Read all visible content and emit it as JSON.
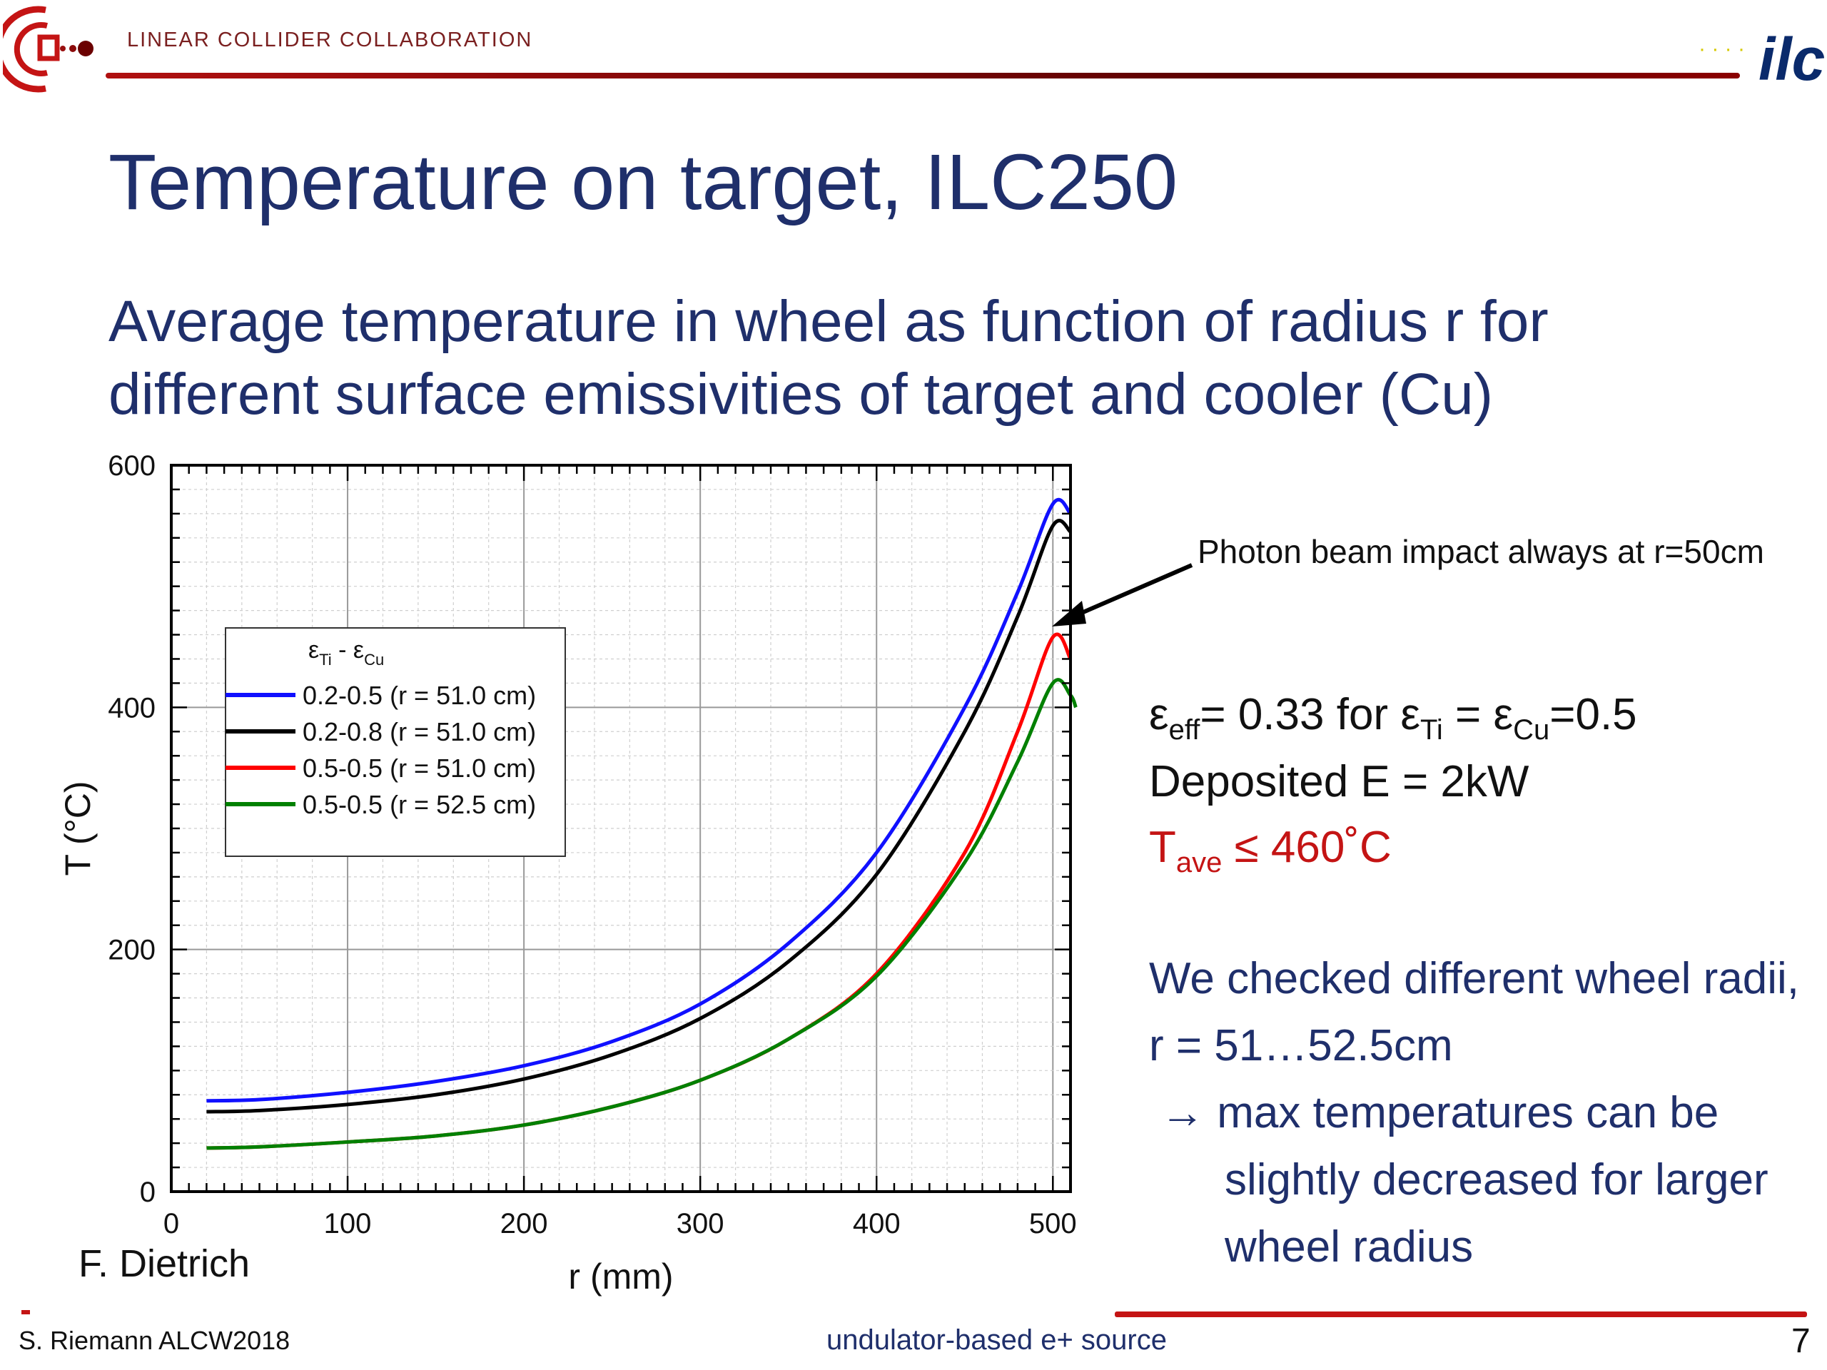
{
  "header": {
    "org": "LINEAR COLLIDER COLLABORATION",
    "ilc_logo": "ilc"
  },
  "slide": {
    "title": "Temperature on target, ILC250",
    "subtitle_line1": "Average temperature in wheel as function of radius r for",
    "subtitle_line2": "different surface emissivities of target and cooler (Cu)"
  },
  "chart_data": {
    "type": "line",
    "xlabel": "r (mm)",
    "ylabel": "T (°C)",
    "xlim": [
      0,
      510
    ],
    "ylim": [
      0,
      600
    ],
    "xticks": [
      "0",
      "100",
      "200",
      "300",
      "400",
      "500"
    ],
    "yticks": [
      "0",
      "200",
      "400",
      "600"
    ],
    "grid": true,
    "legend_title": "εTi - εCu",
    "legend_placement": "center-left",
    "series": [
      {
        "name": "0.2-0.5 (r = 51.0 cm)",
        "color": "#1010ff",
        "x": [
          20,
          50,
          100,
          150,
          200,
          250,
          300,
          350,
          400,
          450,
          480,
          500,
          510
        ],
        "y": [
          75,
          76,
          82,
          91,
          104,
          124,
          155,
          205,
          280,
          400,
          495,
          568,
          560
        ]
      },
      {
        "name": "0.2-0.8 (r = 51.0 cm)",
        "color": "#000000",
        "x": [
          20,
          50,
          100,
          150,
          200,
          250,
          300,
          350,
          400,
          450,
          480,
          500,
          510
        ],
        "y": [
          66,
          67,
          72,
          80,
          93,
          113,
          143,
          190,
          262,
          380,
          475,
          550,
          545
        ]
      },
      {
        "name": "0.5-0.5 (r = 51.0 cm)",
        "color": "#ff0000",
        "x": [
          20,
          50,
          100,
          150,
          200,
          250,
          300,
          350,
          400,
          450,
          480,
          500,
          510
        ],
        "y": [
          36,
          37,
          41,
          46,
          55,
          70,
          92,
          126,
          180,
          280,
          380,
          458,
          440
        ]
      },
      {
        "name": "0.5-0.5 (r = 52.5 cm)",
        "color": "#008000",
        "x": [
          20,
          50,
          100,
          150,
          200,
          250,
          300,
          350,
          400,
          450,
          480,
          500,
          510,
          513
        ],
        "y": [
          36,
          37,
          41,
          46,
          55,
          70,
          92,
          126,
          178,
          272,
          355,
          420,
          410,
          400
        ]
      }
    ],
    "annotation": "Photon beam impact always at r=50cm"
  },
  "chart_labels": {
    "legend_eps": "ε",
    "legend_ti": "Ti",
    "legend_dash": " - ",
    "legend_cu": "Cu"
  },
  "info": {
    "eps": "ε",
    "eff_sub": "eff",
    "eff_text": "= 0.33 for  ",
    "eps_ti": "ε",
    "ti_sub": "Ti",
    "eq_mid": " = ε",
    "cu_sub": "Cu",
    "eq_end": "=0.5",
    "deposited": "Deposited E = 2kW",
    "t": "T",
    "ave_sub": "ave",
    "tave_text": " ≤ 460˚C"
  },
  "notes": {
    "line1": "We checked different wheel radii,",
    "line2": "r = 51…52.5cm",
    "line3_arrow": "→",
    "line3": " max temperatures can be",
    "line4": "slightly decreased for larger",
    "line5": "wheel radius"
  },
  "author": "F. Dietrich",
  "footer": {
    "left": "S. Riemann ALCW2018",
    "center": "undulator-based e+ source",
    "page": "7"
  },
  "colors": {
    "title_blue": "#1f2f6b",
    "accent_red": "#c41414",
    "header_dark_red": "#7a1f1f"
  }
}
